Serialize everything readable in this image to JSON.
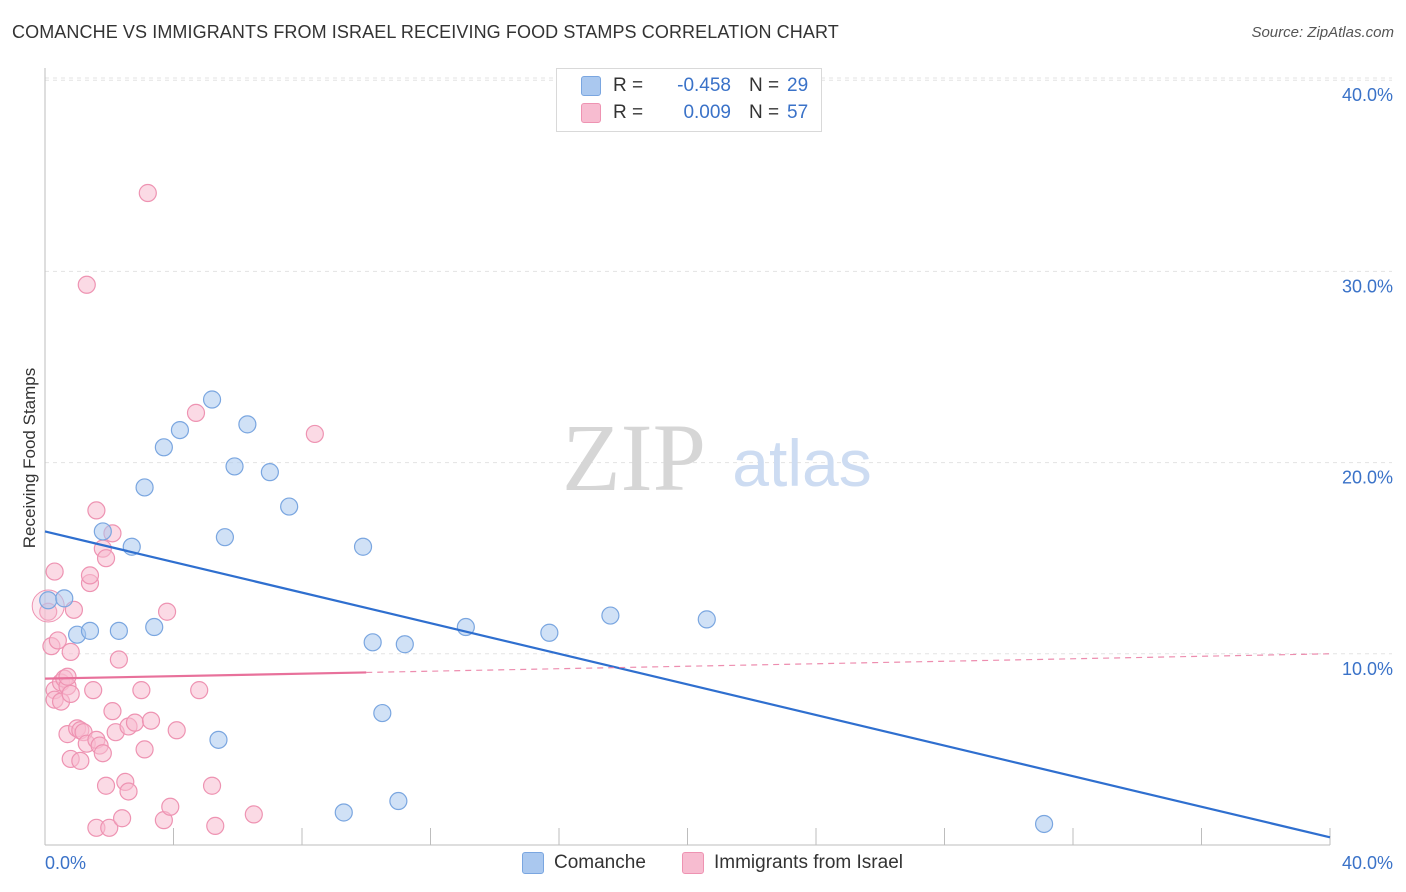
{
  "title": "COMANCHE VS IMMIGRANTS FROM ISRAEL RECEIVING FOOD STAMPS CORRELATION CHART",
  "source": "Source: ZipAtlas.com",
  "watermark": {
    "zip": "ZIP",
    "atlas": "atlas"
  },
  "legend_top": {
    "rows": [
      {
        "r_label": "R =",
        "r_value": "-0.458",
        "n_label": "N =",
        "n_value": "29"
      },
      {
        "r_label": "R =",
        "r_value": "0.009",
        "n_label": "N =",
        "n_value": "57"
      }
    ]
  },
  "legend_bottom": [
    "Comanche",
    "Immigrants from Israel"
  ],
  "colors": {
    "comanche_fill": "#aac8ef",
    "comanche_stroke": "#7aa6e0",
    "comanche_line": "#2f6fcf",
    "israel_fill": "#f7bcd0",
    "israel_stroke": "#ee93b2",
    "israel_line": "#e8719b",
    "tick_text": "#3a72c8",
    "grid": "#e3e3e3"
  },
  "chart_data": {
    "type": "scatter",
    "title": "COMANCHE VS IMMIGRANTS FROM ISRAEL RECEIVING FOOD STAMPS CORRELATION CHART",
    "xlabel": "",
    "ylabel": "Receiving Food Stamps",
    "xlim": [
      0,
      40
    ],
    "ylim": [
      0,
      40
    ],
    "x_tick_labels": [
      "0.0%",
      "40.0%"
    ],
    "y_ticks": [
      10,
      20,
      30,
      40
    ],
    "y_tick_labels": [
      "10.0%",
      "20.0%",
      "30.0%",
      "40.0%"
    ],
    "series": [
      {
        "name": "Comanche",
        "r": -0.458,
        "n": 29,
        "trend": {
          "x0": 0,
          "y0": 16.4,
          "x1": 40,
          "y1": 0.4,
          "solid_to": 40
        },
        "points": [
          [
            0.1,
            12.8
          ],
          [
            0.6,
            12.9
          ],
          [
            1.0,
            11.0
          ],
          [
            1.4,
            11.2
          ],
          [
            1.8,
            16.4
          ],
          [
            2.3,
            11.2
          ],
          [
            2.7,
            15.6
          ],
          [
            3.1,
            18.7
          ],
          [
            3.4,
            11.4
          ],
          [
            3.7,
            20.8
          ],
          [
            4.2,
            21.7
          ],
          [
            5.2,
            23.3
          ],
          [
            5.4,
            5.5
          ],
          [
            5.6,
            16.1
          ],
          [
            5.9,
            19.8
          ],
          [
            6.3,
            22.0
          ],
          [
            7.0,
            19.5
          ],
          [
            7.6,
            17.7
          ],
          [
            9.3,
            1.7
          ],
          [
            9.9,
            15.6
          ],
          [
            10.2,
            10.6
          ],
          [
            10.5,
            6.9
          ],
          [
            11.0,
            2.3
          ],
          [
            11.2,
            10.5
          ],
          [
            13.1,
            11.4
          ],
          [
            15.7,
            11.1
          ],
          [
            17.6,
            12.0
          ],
          [
            20.6,
            11.8
          ],
          [
            31.1,
            1.1
          ]
        ]
      },
      {
        "name": "Immigrants from Israel",
        "r": 0.009,
        "n": 57,
        "trend": {
          "x0": 0,
          "y0": 8.7,
          "x1": 40,
          "y1": 10.0,
          "solid_to": 10
        },
        "points": [
          [
            0.1,
            12.2
          ],
          [
            0.2,
            10.4
          ],
          [
            0.3,
            14.3
          ],
          [
            0.3,
            8.1
          ],
          [
            0.3,
            7.6
          ],
          [
            0.4,
            10.7
          ],
          [
            0.5,
            8.5
          ],
          [
            0.5,
            7.5
          ],
          [
            0.6,
            8.7
          ],
          [
            0.7,
            8.3
          ],
          [
            0.7,
            8.8
          ],
          [
            0.7,
            5.8
          ],
          [
            0.8,
            4.5
          ],
          [
            0.8,
            7.9
          ],
          [
            0.8,
            10.1
          ],
          [
            0.9,
            12.3
          ],
          [
            1.0,
            6.1
          ],
          [
            1.1,
            6.0
          ],
          [
            1.1,
            4.4
          ],
          [
            1.2,
            5.9
          ],
          [
            1.3,
            5.3
          ],
          [
            1.4,
            13.7
          ],
          [
            1.4,
            14.1
          ],
          [
            1.5,
            8.1
          ],
          [
            1.6,
            17.5
          ],
          [
            1.6,
            5.5
          ],
          [
            1.6,
            0.9
          ],
          [
            1.7,
            5.2
          ],
          [
            1.8,
            15.5
          ],
          [
            1.8,
            4.8
          ],
          [
            1.9,
            15.0
          ],
          [
            1.9,
            3.1
          ],
          [
            2.0,
            0.9
          ],
          [
            2.1,
            7.0
          ],
          [
            2.1,
            16.3
          ],
          [
            2.2,
            5.9
          ],
          [
            2.3,
            9.7
          ],
          [
            2.4,
            1.4
          ],
          [
            2.5,
            3.3
          ],
          [
            2.6,
            2.8
          ],
          [
            2.6,
            6.2
          ],
          [
            2.8,
            6.4
          ],
          [
            3.0,
            8.1
          ],
          [
            3.1,
            5.0
          ],
          [
            3.2,
            34.1
          ],
          [
            3.3,
            6.5
          ],
          [
            3.7,
            1.3
          ],
          [
            3.8,
            12.2
          ],
          [
            3.9,
            2.0
          ],
          [
            4.1,
            6.0
          ],
          [
            4.7,
            22.6
          ],
          [
            4.8,
            8.1
          ],
          [
            5.2,
            3.1
          ],
          [
            5.3,
            1.0
          ],
          [
            6.5,
            1.6
          ],
          [
            8.4,
            21.5
          ],
          [
            1.3,
            29.3
          ]
        ]
      }
    ]
  }
}
